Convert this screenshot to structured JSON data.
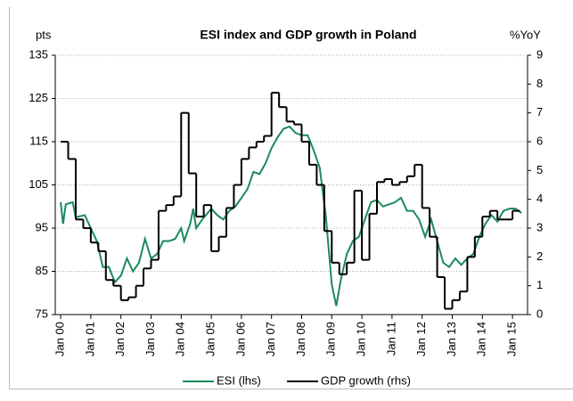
{
  "chart_data": {
    "type": "line",
    "title": "ESI index and GDP growth in Poland",
    "y_label": "pts",
    "y2_label": "%YoY",
    "xlim": [
      1999.82,
      2015.5
    ],
    "xticks": [
      {
        "value": 2000,
        "label": "Jan 00"
      },
      {
        "value": 2001,
        "label": "Jan 01"
      },
      {
        "value": 2002,
        "label": "Jan 02"
      },
      {
        "value": 2003,
        "label": "Jan 03"
      },
      {
        "value": 2004,
        "label": "Jan 04"
      },
      {
        "value": 2005,
        "label": "Jan 05"
      },
      {
        "value": 2006,
        "label": "Jan 06"
      },
      {
        "value": 2007,
        "label": "Jan 07"
      },
      {
        "value": 2008,
        "label": "Jan 08"
      },
      {
        "value": 2009,
        "label": "Jan 09"
      },
      {
        "value": 2010,
        "label": "Jan 10"
      },
      {
        "value": 2011,
        "label": "Jan 11"
      },
      {
        "value": 2012,
        "label": "Jan 12"
      },
      {
        "value": 2013,
        "label": "Jan 13"
      },
      {
        "value": 2014,
        "label": "Jan 14"
      },
      {
        "value": 2015,
        "label": "Jan 15"
      }
    ],
    "ylim": [
      75,
      135
    ],
    "yticks": [
      75,
      85,
      95,
      105,
      115,
      125,
      135
    ],
    "y2lim": [
      0,
      9
    ],
    "y2ticks": [
      0,
      1,
      2,
      3,
      4,
      5,
      6,
      7,
      8,
      9
    ],
    "grid": true,
    "legend": "bottom",
    "series": [
      {
        "name": "ESI (lhs)",
        "color": "#1b8a5a",
        "x": [
          2000.0,
          2000.08,
          2000.17,
          2000.4,
          2000.5,
          2000.8,
          2001.0,
          2001.2,
          2001.4,
          2001.6,
          2001.8,
          2002.0,
          2002.2,
          2002.4,
          2002.6,
          2002.8,
          2003.0,
          2003.2,
          2003.4,
          2003.6,
          2003.8,
          2004.0,
          2004.1,
          2004.3,
          2004.4,
          2004.5,
          2004.7,
          2005.0,
          2005.2,
          2005.4,
          2005.6,
          2005.8,
          2006.0,
          2006.2,
          2006.4,
          2006.6,
          2006.8,
          2007.0,
          2007.2,
          2007.4,
          2007.6,
          2007.8,
          2008.0,
          2008.2,
          2008.4,
          2008.6,
          2008.8,
          2009.0,
          2009.15,
          2009.3,
          2009.5,
          2009.7,
          2009.9,
          2010.1,
          2010.3,
          2010.5,
          2010.7,
          2010.9,
          2011.1,
          2011.3,
          2011.5,
          2011.7,
          2011.9,
          2012.1,
          2012.3,
          2012.5,
          2012.7,
          2012.9,
          2013.1,
          2013.3,
          2013.5,
          2013.7,
          2013.9,
          2014.1,
          2014.3,
          2014.5,
          2014.7,
          2014.9,
          2015.1,
          2015.3
        ],
        "values": [
          101,
          96,
          100.5,
          101,
          97.5,
          98,
          95,
          92,
          86,
          86,
          82.5,
          84,
          88,
          85,
          87,
          92.5,
          88,
          89,
          92,
          92,
          92.5,
          95,
          92,
          96,
          99.5,
          95,
          97,
          99.5,
          98,
          97,
          99,
          100,
          102,
          104,
          108,
          107.5,
          110,
          113.5,
          116,
          118,
          118.5,
          117,
          116.5,
          116.5,
          113,
          109,
          98,
          82,
          77,
          83,
          89,
          92,
          93,
          97,
          101,
          101.5,
          100,
          100.5,
          101,
          102,
          99,
          99,
          97,
          93,
          97,
          92,
          87,
          86,
          88,
          86.5,
          88,
          89,
          93,
          96,
          98,
          96.5,
          99,
          99.5,
          99.5,
          98.5
        ]
      },
      {
        "name": "GDP growth (rhs)",
        "color": "#000000",
        "axis": "y2",
        "step": true,
        "x": [
          2000.0,
          2000.25,
          2000.5,
          2000.75,
          2001.0,
          2001.25,
          2001.5,
          2001.75,
          2002.0,
          2002.25,
          2002.5,
          2002.75,
          2003.0,
          2003.25,
          2003.5,
          2003.75,
          2004.0,
          2004.25,
          2004.5,
          2004.75,
          2005.0,
          2005.25,
          2005.5,
          2005.75,
          2006.0,
          2006.25,
          2006.5,
          2006.75,
          2007.0,
          2007.25,
          2007.5,
          2007.75,
          2008.0,
          2008.25,
          2008.5,
          2008.75,
          2009.0,
          2009.25,
          2009.5,
          2009.75,
          2010.0,
          2010.25,
          2010.5,
          2010.75,
          2011.0,
          2011.25,
          2011.5,
          2011.75,
          2012.0,
          2012.25,
          2012.5,
          2012.75,
          2013.0,
          2013.25,
          2013.5,
          2013.75,
          2014.0,
          2014.25,
          2014.5,
          2014.75,
          2015.0
        ],
        "values": [
          6.0,
          5.4,
          3.3,
          3.0,
          2.5,
          2.2,
          1.2,
          1.0,
          0.5,
          0.6,
          1.0,
          1.6,
          1.9,
          3.6,
          3.8,
          4.1,
          7.0,
          4.9,
          3.4,
          3.8,
          2.2,
          2.7,
          3.7,
          4.5,
          5.4,
          5.8,
          6.0,
          6.2,
          7.7,
          7.2,
          6.7,
          6.6,
          6.0,
          5.2,
          4.5,
          2.9,
          1.8,
          1.4,
          1.8,
          4.3,
          1.9,
          3.5,
          4.6,
          4.7,
          4.5,
          4.6,
          4.8,
          5.2,
          3.7,
          2.7,
          1.3,
          0.2,
          0.5,
          0.8,
          2.0,
          2.7,
          3.4,
          3.6,
          3.3,
          3.3,
          3.6
        ]
      }
    ]
  }
}
